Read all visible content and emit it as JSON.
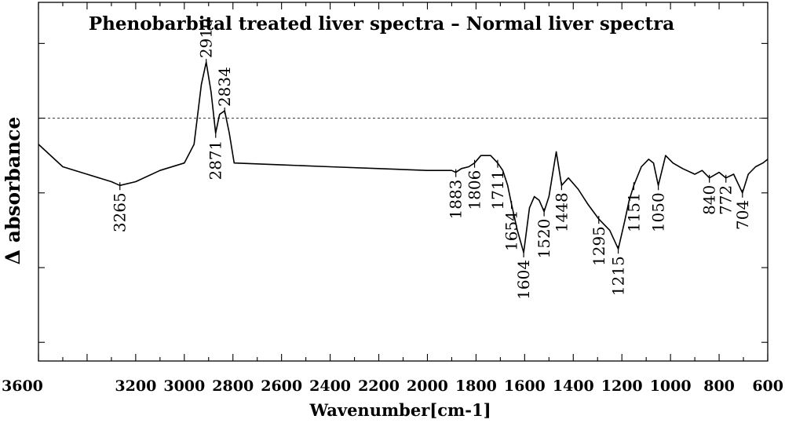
{
  "chart_data": {
    "type": "line",
    "title": "Phenobarbital treated liver spectra – Normal liver spectra",
    "xlabel": "Wavenumber[cm-1]",
    "ylabel": "Δ absorbance",
    "xlim": [
      3600,
      600
    ],
    "x_reversed": true,
    "ylim": [
      -0.65,
      0.31
    ],
    "x_ticks": [
      3600,
      3200,
      3000,
      2800,
      2600,
      2400,
      2200,
      2000,
      1800,
      1600,
      1400,
      1200,
      1000,
      800,
      600
    ],
    "y_ticks_labeled": false,
    "zero_line": "dashed",
    "grid": false,
    "legend": "none",
    "line_color": "#000000",
    "series": [
      {
        "x": [
          3600,
          3500,
          3400,
          3300,
          3265,
          3200,
          3100,
          3000,
          2960,
          2930,
          2910,
          2890,
          2871,
          2855,
          2834,
          2815,
          2795,
          2600,
          2400,
          2200,
          2000,
          1900,
          1883,
          1860,
          1830,
          1806,
          1780,
          1740,
          1711,
          1690,
          1670,
          1654,
          1630,
          1604,
          1580,
          1560,
          1540,
          1520,
          1500,
          1470,
          1448,
          1420,
          1380,
          1340,
          1295,
          1250,
          1215,
          1190,
          1170,
          1151,
          1120,
          1090,
          1070,
          1050,
          1020,
          990,
          950,
          900,
          870,
          840,
          800,
          772,
          740,
          704,
          680,
          650,
          620,
          600
        ],
        "y": [
          -0.07,
          -0.13,
          -0.15,
          -0.17,
          -0.18,
          -0.17,
          -0.14,
          -0.12,
          -0.07,
          0.09,
          0.15,
          0.07,
          -0.04,
          0.01,
          0.02,
          -0.04,
          -0.12,
          -0.125,
          -0.13,
          -0.135,
          -0.14,
          -0.14,
          -0.145,
          -0.135,
          -0.13,
          -0.12,
          -0.1,
          -0.1,
          -0.12,
          -0.14,
          -0.18,
          -0.23,
          -0.3,
          -0.36,
          -0.24,
          -0.21,
          -0.22,
          -0.25,
          -0.21,
          -0.09,
          -0.18,
          -0.16,
          -0.19,
          -0.23,
          -0.27,
          -0.3,
          -0.35,
          -0.28,
          -0.22,
          -0.18,
          -0.13,
          -0.11,
          -0.12,
          -0.18,
          -0.1,
          -0.12,
          -0.135,
          -0.15,
          -0.14,
          -0.16,
          -0.145,
          -0.16,
          -0.15,
          -0.2,
          -0.15,
          -0.13,
          -0.12,
          -0.11
        ]
      }
    ],
    "annotations": [
      {
        "label": "3265",
        "x": 3265,
        "side": "below"
      },
      {
        "label": "2910",
        "x": 2910,
        "side": "above"
      },
      {
        "label": "2871",
        "x": 2871,
        "side": "below"
      },
      {
        "label": "2834",
        "x": 2834,
        "side": "above"
      },
      {
        "label": "1883",
        "x": 1883,
        "side": "below"
      },
      {
        "label": "1806",
        "x": 1806,
        "side": "below"
      },
      {
        "label": "1711",
        "x": 1711,
        "side": "below"
      },
      {
        "label": "1654",
        "x": 1654,
        "side": "below"
      },
      {
        "label": "1604",
        "x": 1604,
        "side": "below"
      },
      {
        "label": "1520",
        "x": 1520,
        "side": "below"
      },
      {
        "label": "1448",
        "x": 1448,
        "side": "below"
      },
      {
        "label": "1295",
        "x": 1295,
        "side": "below"
      },
      {
        "label": "1215",
        "x": 1215,
        "side": "below"
      },
      {
        "label": "1151",
        "x": 1151,
        "side": "below"
      },
      {
        "label": "1050",
        "x": 1050,
        "side": "below"
      },
      {
        "label": "840",
        "x": 840,
        "side": "below"
      },
      {
        "label": "772",
        "x": 772,
        "side": "below"
      },
      {
        "label": "704",
        "x": 704,
        "side": "below"
      }
    ]
  }
}
